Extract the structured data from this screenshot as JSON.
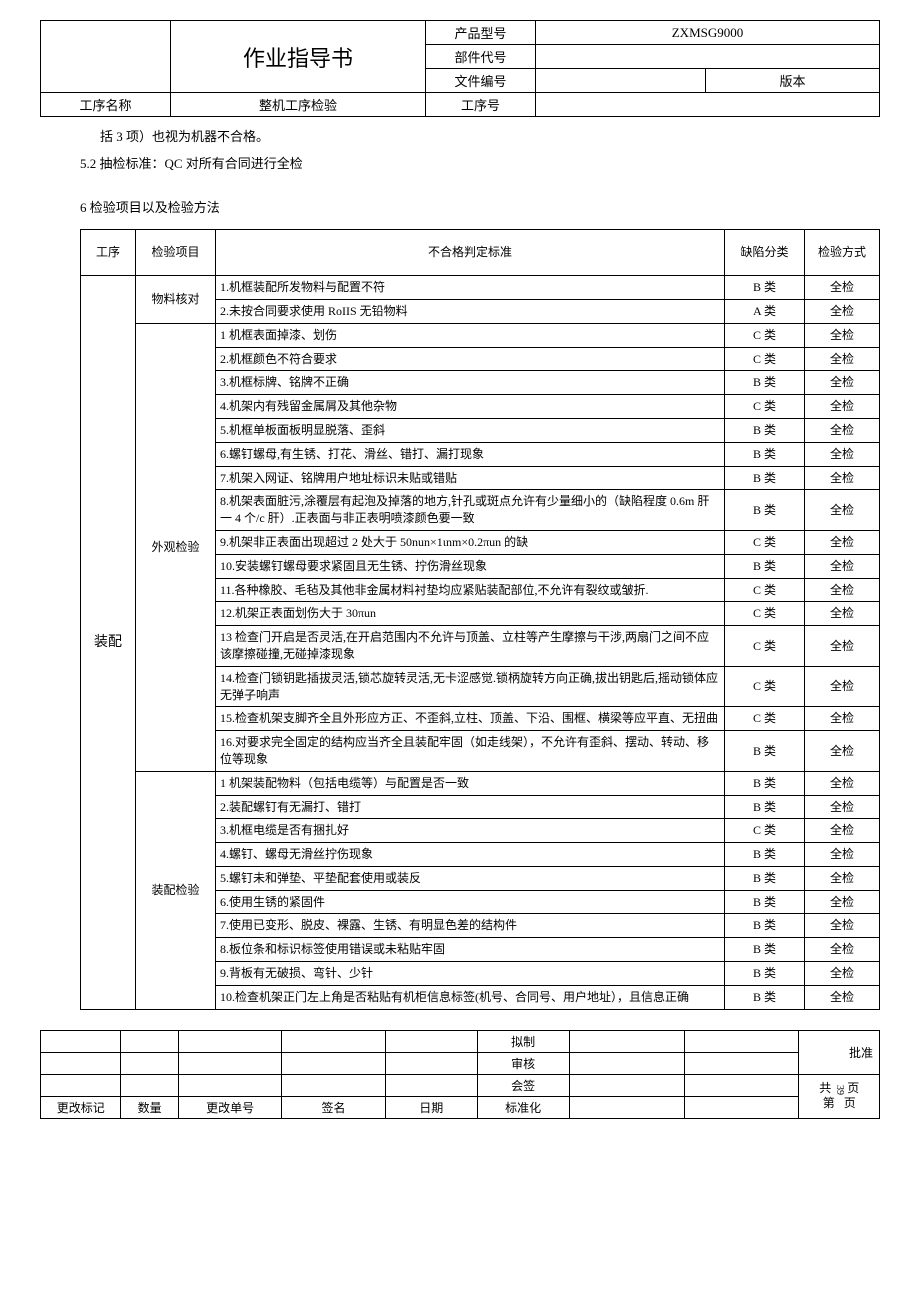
{
  "header": {
    "title": "作业指导书",
    "labels": {
      "product_model": "产品型号",
      "part_code": "部件代号",
      "doc_number": "文件编号",
      "version": "版本",
      "process_name_label": "工序名称",
      "process_name_value": "整机工序检验",
      "process_number": "工序号"
    },
    "product_model_value": "ZXMSG9000",
    "part_code_value": "",
    "doc_number_value": "",
    "version_value": ""
  },
  "body": {
    "line1": "括 3 项）也视为机器不合格。",
    "line2": "5.2  抽检标准：QC 对所有合同进行全检",
    "section6": "6 检验项目以及检验方法"
  },
  "inspection": {
    "headers": {
      "process": "工序",
      "item": "检验项目",
      "criteria": "不合格判定标准",
      "defect": "缺陷分类",
      "method": "检验方式"
    },
    "process_name": "装配",
    "groups": [
      {
        "item": "物料核对",
        "rows": [
          {
            "criteria": "1.机框装配所发物料与配置不符",
            "defect": "B 类",
            "method": "全检"
          },
          {
            "criteria": "2.未按合同要求使用 RoIIS 无铅物料",
            "defect": "A 类",
            "method": "全检"
          }
        ]
      },
      {
        "item": "外观检验",
        "rows": [
          {
            "criteria": "1 机框表面掉漆、划伤",
            "defect": "C 类",
            "method": "全检"
          },
          {
            "criteria": "2.机框颜色不符合要求",
            "defect": "C 类",
            "method": "全检"
          },
          {
            "criteria": "3.机框标牌、铭牌不正确",
            "defect": "B 类",
            "method": "全检"
          },
          {
            "criteria": "4.机架内有残留金属屑及其他杂物",
            "defect": "C 类",
            "method": "全检"
          },
          {
            "criteria": "5.机框单板面板明显脱落、歪斜",
            "defect": "B 类",
            "method": "全检"
          },
          {
            "criteria": "6.螺钉螺母,有生锈、打花、滑丝、错打、漏打现象",
            "defect": "B 类",
            "method": "全检"
          },
          {
            "criteria": "7.机架入网证、铭牌用户地址标识未贴或错贴",
            "defect": "B 类",
            "method": "全检"
          },
          {
            "criteria": "8.机架表面脏污,涂覆层有起泡及掉落的地方,针孔或斑点允许有少量细小的（缺陷程度 0.6m 肝一 4 个/c 肝）.正表面与非正表明喷漆颜色要一致",
            "defect": "B 类",
            "method": "全检"
          },
          {
            "criteria": "9.机架非正表面出现超过 2 处大于 50nun×1ιnm×0.2πun 的缺",
            "defect": "C 类",
            "method": "全检"
          },
          {
            "criteria": "10.安装螺钉螺母要求紧固且无生锈、拧伤滑丝现象",
            "defect": "B 类",
            "method": "全检"
          },
          {
            "criteria": "11.各种橡胶、毛毡及其他非金属材料衬垫均应紧贴装配部位,不允许有裂纹或皱折.",
            "defect": "C 类",
            "method": "全检"
          },
          {
            "criteria": "12.机架正表面划伤大于 30πun",
            "defect": "C 类",
            "method": "全检"
          },
          {
            "criteria": "13 检查门开启是否灵活,在开启范围内不允许与顶盖、立柱等产生摩擦与干涉,两扇门之间不应该摩擦碰撞,无碰掉漆现象",
            "defect": "C 类",
            "method": "全检"
          },
          {
            "criteria": "14.检查门锁钥匙插拔灵活,锁芯旋转灵活,无卡涩感觉.锁柄旋转方向正确,拔出钥匙后,摇动锁体应无弹子响声",
            "defect": "C 类",
            "method": "全检"
          },
          {
            "criteria": "15.检查机架支脚齐全且外形应方正、不歪斜,立柱、顶盖、下沿、围框、横梁等应平直、无扭曲",
            "defect": "C 类",
            "method": "全检"
          },
          {
            "criteria": "16.对要求完全固定的结构应当齐全且装配牢固（如走线架），不允许有歪斜、摆动、转动、移位等现象",
            "defect": "B 类",
            "method": "全检"
          }
        ]
      },
      {
        "item": "装配检验",
        "rows": [
          {
            "criteria": "1 机架装配物料（包括电缆等）与配置是否一致",
            "defect": "B 类",
            "method": "全检"
          },
          {
            "criteria": "2.装配螺钉有无漏打、错打",
            "defect": "B 类",
            "method": "全检"
          },
          {
            "criteria": "3.机框电缆是否有捆扎好",
            "defect": "C 类",
            "method": "全检"
          },
          {
            "criteria": "4.螺钉、螺母无滑丝拧伤现象",
            "defect": "B 类",
            "method": "全检"
          },
          {
            "criteria": "5.螺钉未和弹垫、平垫配套使用或装反",
            "defect": "B 类",
            "method": "全检"
          },
          {
            "criteria": "6.使用生锈的紧固件",
            "defect": "B 类",
            "method": "全检"
          },
          {
            "criteria": "7.使用已变形、脱皮、裸露、生锈、有明显色差的结构件",
            "defect": "B 类",
            "method": "全检"
          },
          {
            "criteria": "8.板位条和标识标签使用错误或未粘贴牢固",
            "defect": "B 类",
            "method": "全检"
          },
          {
            "criteria": "9.背板有无破损、弯针、少针",
            "defect": "B 类",
            "method": "全检"
          },
          {
            "criteria": "10.检查机架正门左上角是否粘贴有机柜信息标签(机号、合同号、用户地址），且信息正确",
            "defect": "B 类",
            "method": "全检"
          }
        ]
      }
    ]
  },
  "footer": {
    "labels": {
      "draft": "拟制",
      "review": "审核",
      "cosign": "会签",
      "change_mark": "更改标记",
      "quantity": "数量",
      "change_number": "更改单号",
      "signature": "签名",
      "date": "日期",
      "standardize": "标准化",
      "approve": "批准",
      "total": "共",
      "page": "页",
      "current": "第",
      "total_pages": "39"
    }
  }
}
